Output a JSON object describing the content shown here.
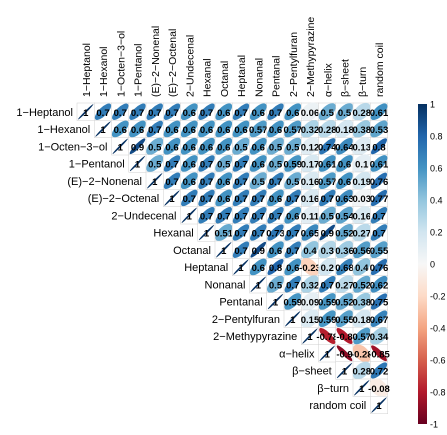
{
  "chart_data": {
    "type": "heatmap",
    "style": "upper-triangle correlation plot with ellipse glyphs and numeric coefficients",
    "variables": [
      "1−Heptanol",
      "1−Hexanol",
      "1−Octen−3−ol",
      "1−Pentanol",
      "(E)−2−Nonenal",
      "(E)−2−Octenal",
      "2−Undecenal",
      "Hexanal",
      "Octanal",
      "Heptanal",
      "Nonanal",
      "Pentanal",
      "2−Pentylfuran",
      "2−Methypyrazine",
      "α−helix",
      "β−sheet",
      "β−turn",
      "random coil"
    ],
    "matrix": [
      [
        1,
        0.7,
        0.7,
        0.7,
        0.7,
        0.7,
        0.6,
        0.7,
        0.6,
        0.7,
        0.6,
        0.7,
        0.6,
        0.06,
        0.5,
        0.5,
        0.28,
        0.61
      ],
      [
        null,
        1,
        0.6,
        0.6,
        0.7,
        0.6,
        0.6,
        0.6,
        0.6,
        0.6,
        0.57,
        0.6,
        0.57,
        0.32,
        0.28,
        0.18,
        0.38,
        0.53
      ],
      [
        null,
        null,
        1,
        0.9,
        0.5,
        0.6,
        0.6,
        0.6,
        0.6,
        0.5,
        0.6,
        0.5,
        0.5,
        0.12,
        0.74,
        0.64,
        0.13,
        0.8
      ],
      [
        null,
        null,
        null,
        1,
        0.5,
        0.7,
        0.6,
        0.7,
        0.5,
        0.7,
        0.6,
        0.5,
        0.59,
        0.17,
        0.61,
        0.6,
        0.1,
        0.61
      ],
      [
        null,
        null,
        null,
        null,
        1,
        0.7,
        0.6,
        0.7,
        0.6,
        0.7,
        0.5,
        0.7,
        0.5,
        0.16,
        0.57,
        0.6,
        0.19,
        0.76
      ],
      [
        null,
        null,
        null,
        null,
        null,
        1,
        0.7,
        0.7,
        0.6,
        0.7,
        0.7,
        0.6,
        0.7,
        0.16,
        0.7,
        0.63,
        0.03,
        0.77
      ],
      [
        null,
        null,
        null,
        null,
        null,
        null,
        1,
        0.7,
        0.7,
        0.7,
        0.7,
        0.7,
        0.6,
        0.11,
        0.5,
        0.54,
        0.16,
        0.7
      ],
      [
        null,
        null,
        null,
        null,
        null,
        null,
        null,
        1,
        0.51,
        0.7,
        0.7,
        0.73,
        0.7,
        0.65,
        0.9,
        0.52,
        0.27,
        0.7
      ],
      [
        null,
        null,
        null,
        null,
        null,
        null,
        null,
        null,
        1,
        0.7,
        0.9,
        0.6,
        0.7,
        0.4,
        0.3,
        0.36,
        0.56,
        0.55
      ],
      [
        null,
        null,
        null,
        null,
        null,
        null,
        null,
        null,
        null,
        1,
        0.6,
        0.8,
        0.6,
        -0.23,
        0.2,
        0.68,
        0.4,
        0.76
      ],
      [
        null,
        null,
        null,
        null,
        null,
        null,
        null,
        null,
        null,
        null,
        1,
        0.5,
        0.7,
        0.32,
        0.7,
        0.27,
        0.52,
        0.62
      ],
      [
        null,
        null,
        null,
        null,
        null,
        null,
        null,
        null,
        null,
        null,
        null,
        1,
        0.59,
        0.09,
        0.59,
        0.52,
        0.38,
        0.75
      ],
      [
        null,
        null,
        null,
        null,
        null,
        null,
        null,
        null,
        null,
        null,
        null,
        null,
        1,
        0.15,
        0.59,
        0.55,
        0.18,
        0.67
      ],
      [
        null,
        null,
        null,
        null,
        null,
        null,
        null,
        null,
        null,
        null,
        null,
        null,
        null,
        1,
        -0.78,
        -0.8,
        0.57,
        0.34
      ],
      [
        null,
        null,
        null,
        null,
        null,
        null,
        null,
        null,
        null,
        null,
        null,
        null,
        null,
        null,
        1,
        -0.9,
        -0.28,
        -0.85
      ],
      [
        null,
        null,
        null,
        null,
        null,
        null,
        null,
        null,
        null,
        null,
        null,
        null,
        null,
        null,
        null,
        1,
        0.28,
        0.72
      ],
      [
        null,
        null,
        null,
        null,
        null,
        null,
        null,
        null,
        null,
        null,
        null,
        null,
        null,
        null,
        null,
        null,
        1,
        -0.08
      ],
      [
        null,
        null,
        null,
        null,
        null,
        null,
        null,
        null,
        null,
        null,
        null,
        null,
        null,
        null,
        null,
        null,
        null,
        1
      ]
    ],
    "colorbar": {
      "ticks": [
        "1",
        "0.8",
        "0.6",
        "0.4",
        "0.2",
        "0",
        "-0.2",
        "-0.4",
        "-0.6",
        "-0.8",
        "-1"
      ],
      "range": [
        -1,
        1
      ],
      "colors": [
        "#67001f",
        "#b2182b",
        "#d6604d",
        "#f4a582",
        "#fddbc7",
        "#f7f7f7",
        "#d1e5f0",
        "#92c5de",
        "#4393c3",
        "#2166ac",
        "#053061"
      ]
    }
  }
}
